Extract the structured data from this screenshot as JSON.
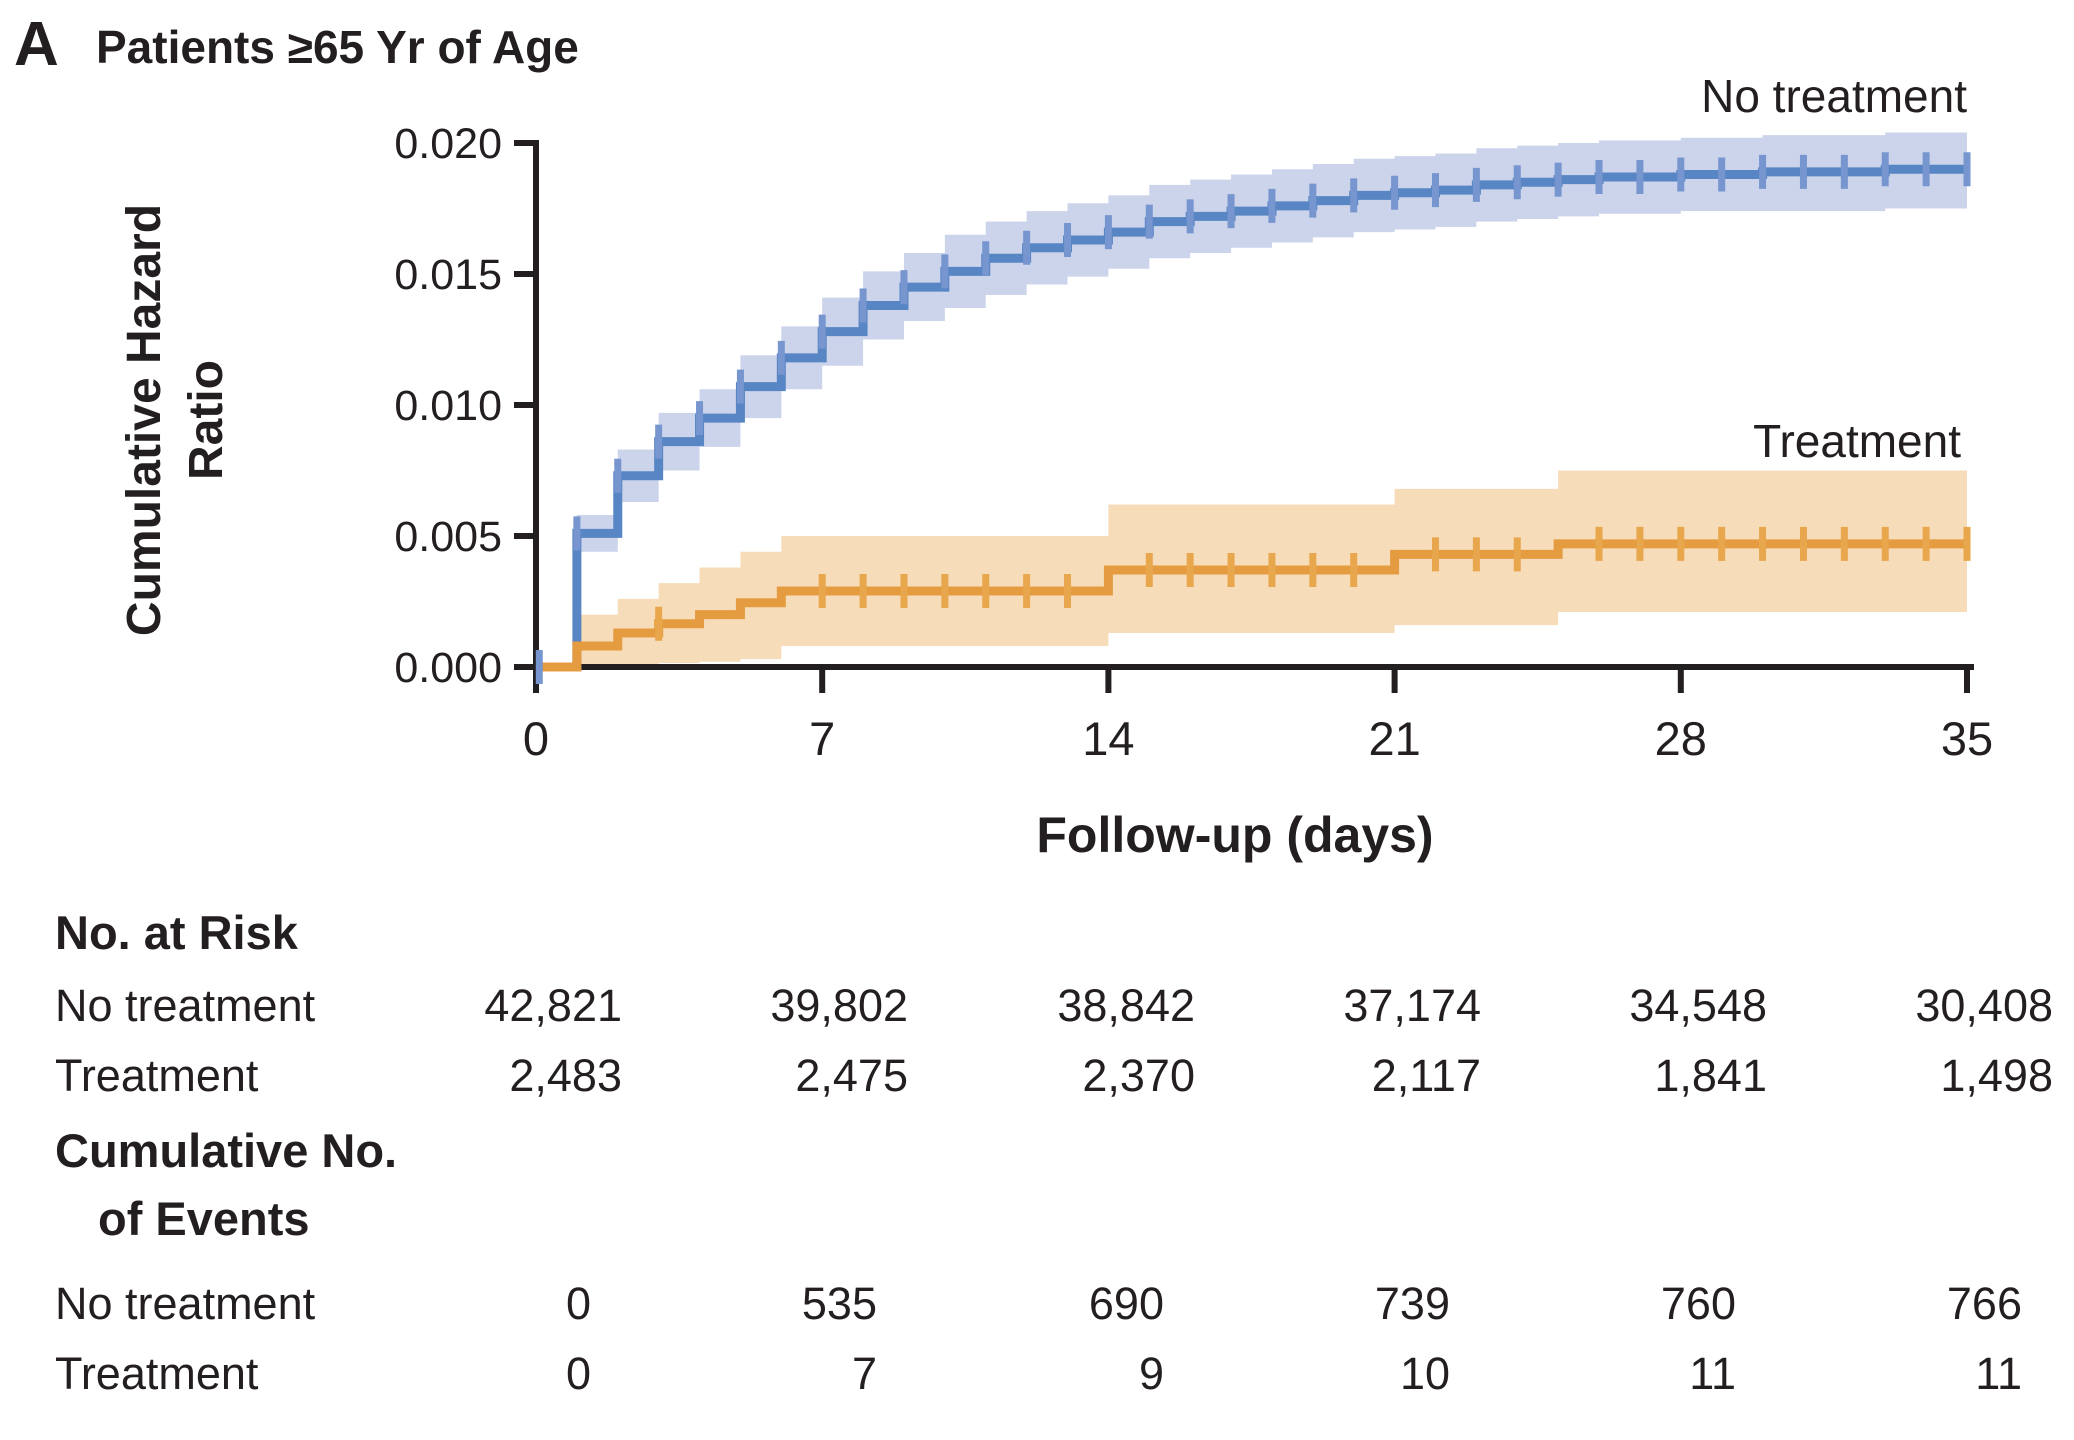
{
  "panel": {
    "label": "A",
    "title": "Patients ≥65 Yr of Age"
  },
  "chart_data": {
    "type": "line",
    "subtype": "cumulative-hazard-step-curves-with-confidence-bands",
    "title": "Patients ≥65 Yr of Age",
    "xlabel": "Follow-up (days)",
    "ylabel_line1": "Cumulative Hazard",
    "ylabel_line2": "Ratio",
    "xlim": [
      0,
      35
    ],
    "ylim": [
      0,
      0.02
    ],
    "xticks": [
      0,
      7,
      14,
      21,
      28,
      35
    ],
    "ytick_values": [
      0,
      0.005,
      0.01,
      0.015,
      0.02
    ],
    "ytick_labels": [
      "0.000",
      "0.005",
      "0.010",
      "0.015",
      "0.020"
    ],
    "grid": false,
    "legend_position": "labels-on-plot",
    "series": [
      {
        "id": "no-treatment",
        "name": "No treatment",
        "line_color": "#5885c4",
        "band_color": "#cbd4ea",
        "censor_color": "#7795ce",
        "label_x_day": 35,
        "label_value": 0.0212,
        "steps": [
          [
            0,
            0
          ],
          [
            1,
            0.0051
          ],
          [
            2,
            0.0073
          ],
          [
            3,
            0.0086
          ],
          [
            4,
            0.0095
          ],
          [
            5,
            0.0107
          ],
          [
            6,
            0.0118
          ],
          [
            7,
            0.0128
          ],
          [
            8,
            0.0138
          ],
          [
            9,
            0.0145
          ],
          [
            10,
            0.0151
          ],
          [
            11,
            0.0156
          ],
          [
            12,
            0.016
          ],
          [
            13,
            0.0163
          ],
          [
            14,
            0.0166
          ],
          [
            15,
            0.017
          ],
          [
            16,
            0.0172
          ],
          [
            17,
            0.0174
          ],
          [
            18,
            0.0176
          ],
          [
            19,
            0.0178
          ],
          [
            20,
            0.018
          ],
          [
            21,
            0.0181
          ],
          [
            22,
            0.0182
          ],
          [
            23,
            0.0184
          ],
          [
            24,
            0.0185
          ],
          [
            25,
            0.0186
          ],
          [
            26,
            0.0187
          ],
          [
            28,
            0.0188
          ],
          [
            30,
            0.0189
          ],
          [
            33,
            0.019
          ]
        ],
        "band": [
          [
            1,
            0.0044,
            0.0058
          ],
          [
            2,
            0.0063,
            0.0083
          ],
          [
            3,
            0.0075,
            0.0097
          ],
          [
            4,
            0.0084,
            0.0106
          ],
          [
            5,
            0.0095,
            0.0119
          ],
          [
            6,
            0.0106,
            0.013
          ],
          [
            7,
            0.0115,
            0.0141
          ],
          [
            8,
            0.0125,
            0.0151
          ],
          [
            9,
            0.0132,
            0.0158
          ],
          [
            10,
            0.0137,
            0.0165
          ],
          [
            11,
            0.0142,
            0.017
          ],
          [
            12,
            0.0146,
            0.0174
          ],
          [
            13,
            0.0149,
            0.0177
          ],
          [
            14,
            0.0152,
            0.018
          ],
          [
            15,
            0.0156,
            0.0184
          ],
          [
            16,
            0.0158,
            0.0186
          ],
          [
            17,
            0.016,
            0.0188
          ],
          [
            18,
            0.0162,
            0.019
          ],
          [
            19,
            0.0164,
            0.0192
          ],
          [
            20,
            0.0166,
            0.0194
          ],
          [
            21,
            0.0167,
            0.0195
          ],
          [
            22,
            0.0168,
            0.0196
          ],
          [
            23,
            0.017,
            0.0198
          ],
          [
            24,
            0.0171,
            0.0199
          ],
          [
            25,
            0.0172,
            0.02
          ],
          [
            26,
            0.0173,
            0.0201
          ],
          [
            28,
            0.0174,
            0.0202
          ],
          [
            30,
            0.0174,
            0.0203
          ],
          [
            33,
            0.0175,
            0.0204
          ]
        ],
        "censor_days": [
          0.08,
          1,
          2,
          3,
          4,
          5,
          6,
          7,
          8,
          9,
          10,
          11,
          12,
          13,
          14,
          15,
          16,
          17,
          18,
          19,
          20,
          21,
          22,
          23,
          24,
          25,
          26,
          27,
          28,
          29,
          30,
          31,
          32,
          33,
          34,
          35
        ]
      },
      {
        "id": "treatment",
        "name": "Treatment",
        "line_color": "#e59c41",
        "band_color": "#f7dcb9",
        "censor_color": "#e8a64d",
        "label_x_day": 35,
        "label_value": 0.0086,
        "steps": [
          [
            0,
            0
          ],
          [
            1,
            0.0008
          ],
          [
            2,
            0.0013
          ],
          [
            3,
            0.00165
          ],
          [
            4,
            0.002
          ],
          [
            5,
            0.00245
          ],
          [
            6,
            0.0029
          ],
          [
            14,
            0.0037
          ],
          [
            21,
            0.0043
          ],
          [
            25,
            0.0047
          ]
        ],
        "band": [
          [
            1,
            5e-05,
            0.002
          ],
          [
            2,
            0.0001,
            0.0026
          ],
          [
            3,
            0.00015,
            0.0032
          ],
          [
            4,
            0.0002,
            0.0038
          ],
          [
            5,
            0.0003,
            0.0044
          ],
          [
            6,
            0.0008,
            0.005
          ],
          [
            14,
            0.0013,
            0.0062
          ],
          [
            21,
            0.0016,
            0.0068
          ],
          [
            25,
            0.0021,
            0.0075
          ]
        ],
        "censor_days": [
          3,
          7,
          8,
          9,
          10,
          11,
          12,
          13,
          15,
          16,
          17,
          18,
          19,
          20,
          22,
          23,
          24,
          26,
          27,
          28,
          29,
          30,
          31,
          32,
          33,
          34,
          35
        ]
      }
    ]
  },
  "tables": {
    "risk": {
      "header": "No. at Risk",
      "rows": [
        {
          "label": "No treatment",
          "values": [
            "42,821",
            "39,802",
            "38,842",
            "37,174",
            "34,548",
            "30,408"
          ]
        },
        {
          "label": "Treatment",
          "values": [
            "2,483",
            "2,475",
            "2,370",
            "2,117",
            "1,841",
            "1,498"
          ]
        }
      ]
    },
    "events": {
      "header_line1": "Cumulative No.",
      "header_line2": "of Events",
      "rows": [
        {
          "label": "No treatment",
          "values": [
            "0",
            "535",
            "690",
            "739",
            "760",
            "766"
          ]
        },
        {
          "label": "Treatment",
          "values": [
            "0",
            "7",
            "9",
            "10",
            "11",
            "11"
          ]
        }
      ]
    }
  },
  "colors": {
    "ink": "#231f20",
    "no_treatment_line": "#5885c4",
    "no_treatment_band": "#cbd4ea",
    "treatment_line": "#e59c41",
    "treatment_band": "#f7dcb9"
  }
}
